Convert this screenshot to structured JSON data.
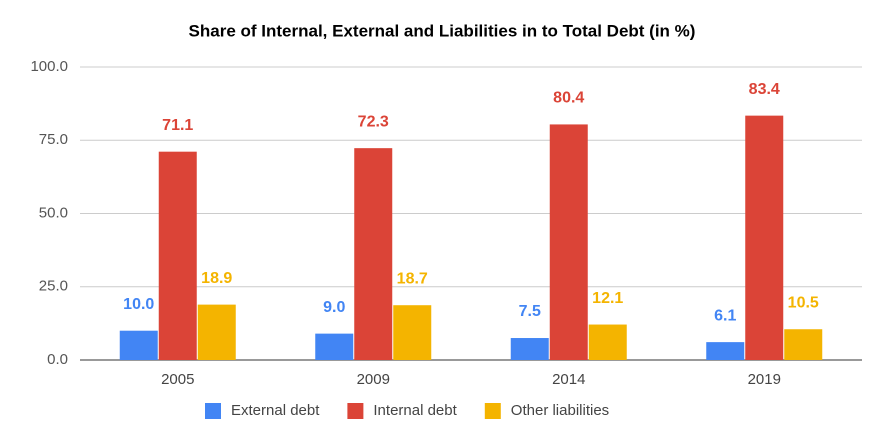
{
  "chart_data": {
    "type": "bar",
    "title": "Share of Internal, External and Liabilities in to Total Debt (in %)",
    "categories": [
      "2005",
      "2009",
      "2014",
      "2019"
    ],
    "series": [
      {
        "name": "External debt",
        "color": "#4285f4",
        "values": [
          10.0,
          9.0,
          7.5,
          6.1
        ],
        "value_labels": [
          "10.0",
          "9.0",
          "7.5",
          "6.1"
        ]
      },
      {
        "name": "Internal debt",
        "color": "#db4437",
        "values": [
          71.1,
          72.3,
          80.4,
          83.4
        ],
        "value_labels": [
          "71.1",
          "72.3",
          "80.4",
          "83.4"
        ]
      },
      {
        "name": "Other liabilities",
        "color": "#f4b400",
        "values": [
          18.9,
          18.7,
          12.1,
          10.5
        ],
        "value_labels": [
          "18.9",
          "18.7",
          "12.1",
          "10.5"
        ]
      }
    ],
    "ylim": [
      0,
      100
    ],
    "yticks": [
      {
        "value": 0,
        "label": "0.0"
      },
      {
        "value": 25,
        "label": "25.0"
      },
      {
        "value": 50,
        "label": "50.0"
      },
      {
        "value": 75,
        "label": "75.0"
      },
      {
        "value": 100,
        "label": "100.0"
      }
    ],
    "grid": true
  }
}
